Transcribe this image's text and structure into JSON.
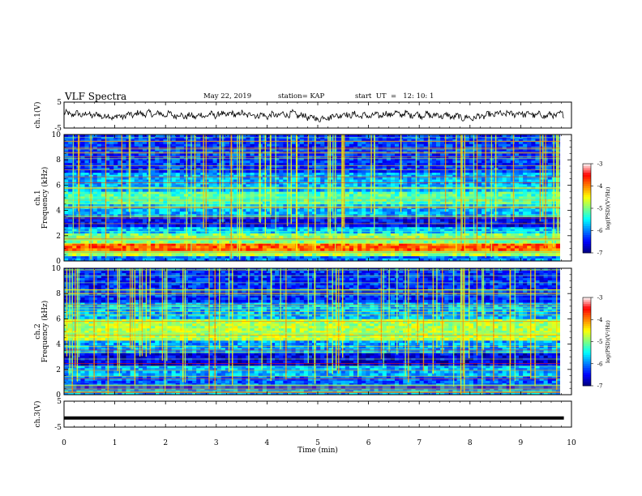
{
  "header": {
    "title": "VLF Spectra",
    "date": "May 22, 2019",
    "station": "station= KAP",
    "start": "start  UT  =   12: 10: 1"
  },
  "colors": {
    "trace": "#000000",
    "colormap": [
      "#00007f",
      "#0000ff",
      "#0080ff",
      "#00ffff",
      "#80ff80",
      "#ffff00",
      "#ff8000",
      "#ff0000",
      "#ffffff"
    ]
  },
  "chart_data": [
    {
      "type": "line",
      "panel": "ch1-waveform",
      "ylabel": "ch.1(V)",
      "ylim": [
        -5,
        5
      ],
      "yticks": [
        "5",
        "-5"
      ],
      "xlim": [
        0,
        10
      ],
      "x": [
        0,
        0.5,
        1,
        1.5,
        2,
        2.5,
        3,
        3.5,
        4,
        4.5,
        5,
        5.5,
        6,
        6.5,
        7,
        7.5,
        8,
        8.5,
        9,
        9.5,
        9.85
      ],
      "values": [
        0.5,
        0.2,
        -0.8,
        0.6,
        0.3,
        -0.5,
        0.2,
        0.4,
        -0.3,
        0.5,
        -1.5,
        0.3,
        -0.4,
        0.6,
        0.1,
        -0.2,
        -1.2,
        0.4,
        0.6,
        -0.2,
        0.3
      ]
    },
    {
      "type": "heatmap",
      "panel": "ch1-spectrogram",
      "ylabel": "ch.1 Frequency  (kHz)",
      "ylim": [
        0,
        10
      ],
      "yticks": [
        "0",
        "2",
        "4",
        "6",
        "8",
        "10"
      ],
      "xlim": [
        0,
        10
      ],
      "colorbar": {
        "label": "log(PSD)(V²/Hz)",
        "range": [
          -7,
          -3
        ],
        "ticks": [
          "-3",
          "-4",
          "-5",
          "-6",
          "-7"
        ]
      },
      "bands": [
        {
          "f": [
            0.0,
            0.4
          ],
          "level": 0.25
        },
        {
          "f": [
            0.4,
            0.8
          ],
          "level": 0.55
        },
        {
          "f": [
            0.8,
            1.4
          ],
          "level": 0.78
        },
        {
          "f": [
            1.4,
            2.2
          ],
          "level": 0.5
        },
        {
          "f": [
            2.2,
            2.7
          ],
          "level": 0.32
        },
        {
          "f": [
            2.7,
            3.5
          ],
          "level": 0.12
        },
        {
          "f": [
            3.5,
            4.5
          ],
          "level": 0.3
        },
        {
          "f": [
            4.5,
            5.5
          ],
          "level": 0.45
        },
        {
          "f": [
            5.5,
            7.0
          ],
          "level": 0.3
        },
        {
          "f": [
            7.0,
            10.0
          ],
          "level": 0.18
        }
      ]
    },
    {
      "type": "heatmap",
      "panel": "ch2-spectrogram",
      "ylabel": "ch.2 Frequency  (kHz)",
      "ylim": [
        0,
        10
      ],
      "yticks": [
        "0",
        "2",
        "4",
        "6",
        "8",
        "10"
      ],
      "xlim": [
        0,
        10
      ],
      "colorbar": {
        "label": "log(PSD)(V²/Hz)",
        "range": [
          -7,
          -3
        ],
        "ticks": [
          "-3",
          "-4",
          "-5",
          "-6",
          "-7"
        ]
      },
      "bands": [
        {
          "f": [
            0.0,
            0.5
          ],
          "level": 0.3
        },
        {
          "f": [
            0.5,
            1.5
          ],
          "level": 0.22
        },
        {
          "f": [
            1.5,
            2.3
          ],
          "level": 0.3
        },
        {
          "f": [
            2.3,
            3.3
          ],
          "level": 0.1
        },
        {
          "f": [
            3.3,
            4.3
          ],
          "level": 0.28
        },
        {
          "f": [
            4.3,
            6.0
          ],
          "level": 0.55
        },
        {
          "f": [
            6.0,
            7.3
          ],
          "level": 0.3
        },
        {
          "f": [
            7.3,
            10.0
          ],
          "level": 0.16
        }
      ]
    },
    {
      "type": "line",
      "panel": "ch3-waveform",
      "ylabel": "ch.3(V)",
      "ylim": [
        -5,
        5
      ],
      "yticks": [
        "5",
        "-5"
      ],
      "xlim": [
        0,
        10
      ],
      "x": [
        0,
        9.85
      ],
      "values": [
        -1.5,
        -1.5
      ]
    }
  ],
  "xaxis": {
    "label": "Time  (min)",
    "ticks": [
      "0",
      "1",
      "2",
      "3",
      "4",
      "5",
      "6",
      "7",
      "8",
      "9",
      "10"
    ]
  }
}
